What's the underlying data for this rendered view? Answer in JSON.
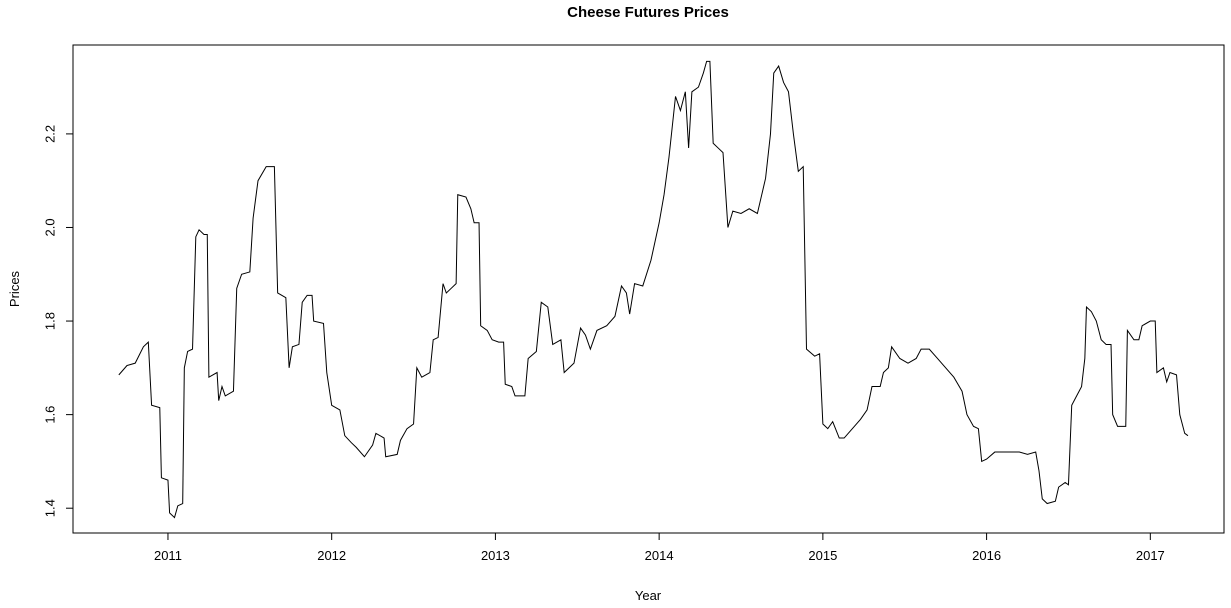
{
  "chart_data": {
    "type": "line",
    "title": "Cheese Futures Prices",
    "x_label": "Year",
    "y_label": "Prices",
    "color": "#000000",
    "xlim": [
      2010.42,
      2017.45
    ],
    "ylim": [
      1.347,
      2.39
    ],
    "xticks": [
      2011,
      2012,
      2013,
      2014,
      2015,
      2016,
      2017
    ],
    "yticks": [
      1.4,
      1.6,
      1.8,
      {
        "value": 2,
        "label": "2.0"
      },
      2.2
    ],
    "x": [
      2010.7,
      2010.75,
      2010.8,
      2010.85,
      2010.88,
      2010.9,
      2010.95,
      2010.96,
      2011.0,
      2011.01,
      2011.04,
      2011.06,
      2011.09,
      2011.1,
      2011.12,
      2011.15,
      2011.17,
      2011.19,
      2011.22,
      2011.24,
      2011.25,
      2011.3,
      2011.31,
      2011.33,
      2011.35,
      2011.4,
      2011.42,
      2011.45,
      2011.5,
      2011.52,
      2011.55,
      2011.6,
      2011.65,
      2011.67,
      2011.72,
      2011.74,
      2011.76,
      2011.8,
      2011.82,
      2011.85,
      2011.88,
      2011.89,
      2011.95,
      2011.97,
      2012.0,
      2012.05,
      2012.08,
      2012.12,
      2012.15,
      2012.2,
      2012.25,
      2012.27,
      2012.32,
      2012.33,
      2012.4,
      2012.42,
      2012.46,
      2012.5,
      2012.52,
      2012.55,
      2012.6,
      2012.62,
      2012.65,
      2012.68,
      2012.7,
      2012.73,
      2012.76,
      2012.77,
      2012.82,
      2012.85,
      2012.87,
      2012.9,
      2012.91,
      2012.95,
      2012.98,
      2013.02,
      2013.05,
      2013.06,
      2013.1,
      2013.12,
      2013.18,
      2013.2,
      2013.25,
      2013.28,
      2013.32,
      2013.35,
      2013.4,
      2013.42,
      2013.48,
      2013.52,
      2013.55,
      2013.58,
      2013.62,
      2013.68,
      2013.73,
      2013.77,
      2013.8,
      2013.82,
      2013.85,
      2013.9,
      2013.95,
      2014.0,
      2014.03,
      2014.06,
      2014.1,
      2014.13,
      2014.16,
      2014.18,
      2014.2,
      2014.24,
      2014.27,
      2014.29,
      2014.31,
      2014.33,
      2014.36,
      2014.39,
      2014.42,
      2014.45,
      2014.5,
      2014.55,
      2014.6,
      2014.65,
      2014.68,
      2014.7,
      2014.73,
      2014.76,
      2014.79,
      2014.82,
      2014.85,
      2014.88,
      2014.9,
      2014.95,
      2014.98,
      2015.0,
      2015.03,
      2015.06,
      2015.1,
      2015.13,
      2015.18,
      2015.23,
      2015.27,
      2015.3,
      2015.35,
      2015.37,
      2015.4,
      2015.42,
      2015.47,
      2015.52,
      2015.57,
      2015.6,
      2015.65,
      2015.7,
      2015.75,
      2015.8,
      2015.85,
      2015.88,
      2015.92,
      2015.95,
      2015.97,
      2016.0,
      2016.05,
      2016.1,
      2016.2,
      2016.25,
      2016.3,
      2016.32,
      2016.34,
      2016.37,
      2016.42,
      2016.44,
      2016.48,
      2016.5,
      2016.52,
      2016.55,
      2016.58,
      2016.6,
      2016.61,
      2016.64,
      2016.67,
      2016.7,
      2016.73,
      2016.76,
      2016.77,
      2016.8,
      2016.85,
      2016.86,
      2016.9,
      2016.93,
      2016.95,
      2017.0,
      2017.03,
      2017.04,
      2017.08,
      2017.1,
      2017.12,
      2017.16,
      2017.18,
      2017.21,
      2017.23
    ],
    "values": [
      1.685,
      1.705,
      1.71,
      1.745,
      1.755,
      1.62,
      1.615,
      1.465,
      1.46,
      1.39,
      1.38,
      1.405,
      1.41,
      1.7,
      1.735,
      1.74,
      1.98,
      1.995,
      1.985,
      1.985,
      1.68,
      1.69,
      1.63,
      1.66,
      1.64,
      1.65,
      1.87,
      1.9,
      1.905,
      2.02,
      2.1,
      2.13,
      2.13,
      1.86,
      1.85,
      1.7,
      1.745,
      1.75,
      1.84,
      1.855,
      1.855,
      1.8,
      1.795,
      1.69,
      1.62,
      1.61,
      1.555,
      1.54,
      1.53,
      1.51,
      1.535,
      1.56,
      1.55,
      1.51,
      1.515,
      1.545,
      1.57,
      1.58,
      1.7,
      1.68,
      1.69,
      1.76,
      1.765,
      1.88,
      1.86,
      1.87,
      1.88,
      2.07,
      2.065,
      2.04,
      2.01,
      2.01,
      1.79,
      1.78,
      1.76,
      1.755,
      1.755,
      1.665,
      1.66,
      1.64,
      1.64,
      1.72,
      1.735,
      1.84,
      1.83,
      1.75,
      1.76,
      1.69,
      1.71,
      1.785,
      1.77,
      1.74,
      1.78,
      1.79,
      1.81,
      1.875,
      1.86,
      1.815,
      1.88,
      1.875,
      1.93,
      2.01,
      2.07,
      2.15,
      2.28,
      2.25,
      2.29,
      2.17,
      2.29,
      2.3,
      2.33,
      2.355,
      2.355,
      2.18,
      2.17,
      2.16,
      2.0,
      2.035,
      2.03,
      2.04,
      2.03,
      2.105,
      2.2,
      2.33,
      2.345,
      2.31,
      2.29,
      2.2,
      2.12,
      2.13,
      1.74,
      1.725,
      1.73,
      1.58,
      1.57,
      1.585,
      1.55,
      1.55,
      1.57,
      1.59,
      1.61,
      1.66,
      1.66,
      1.69,
      1.7,
      1.745,
      1.72,
      1.71,
      1.72,
      1.74,
      1.74,
      1.72,
      1.7,
      1.68,
      1.65,
      1.6,
      1.575,
      1.57,
      1.5,
      1.505,
      1.52,
      1.52,
      1.52,
      1.515,
      1.52,
      1.48,
      1.42,
      1.41,
      1.415,
      1.445,
      1.455,
      1.45,
      1.62,
      1.64,
      1.66,
      1.72,
      1.83,
      1.82,
      1.8,
      1.76,
      1.75,
      1.75,
      1.6,
      1.575,
      1.575,
      1.78,
      1.76,
      1.76,
      1.79,
      1.8,
      1.8,
      1.69,
      1.7,
      1.67,
      1.69,
      1.685,
      1.6,
      1.56,
      1.555
    ]
  }
}
